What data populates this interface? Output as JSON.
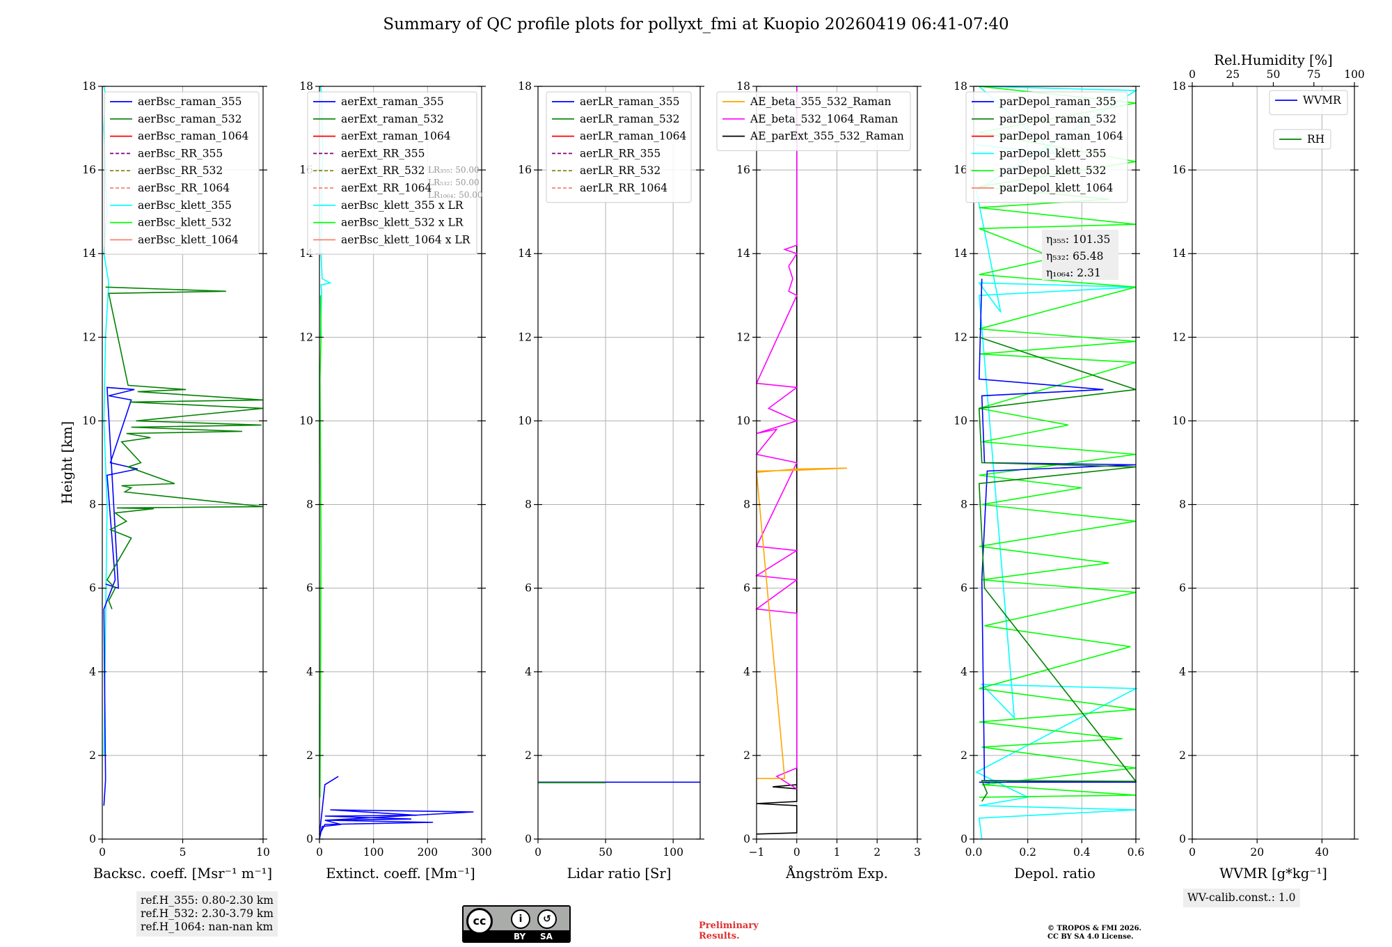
{
  "title": "Summary of QC profile plots for pollyxt_fmi at Kuopio 20260419 06:41-07:40",
  "colors": {
    "blue": "#0000ff",
    "green": "#008000",
    "red": "#ff0000",
    "purple": "#800080",
    "olive": "#808000",
    "salmon": "#fa8072",
    "cyan": "#00ffff",
    "lime": "#00ff00",
    "orange": "#ffa500",
    "magenta": "#ff00ff",
    "black": "#000000",
    "grid": "#b0b0b0"
  },
  "chart_data": [
    {
      "id": "backscatter",
      "type": "line",
      "ylabel": "Height [km]",
      "ylim": [
        0,
        18
      ],
      "yticks": [
        0,
        2,
        4,
        6,
        8,
        10,
        12,
        14,
        16,
        18
      ],
      "xlabel": "Backsc. coeff. [Msr⁻¹ m⁻¹]",
      "xlim": [
        0,
        10
      ],
      "xticks": [
        0,
        5,
        10
      ],
      "xticklabels": [
        "0",
        "5",
        "10"
      ],
      "legend": {
        "placement": "top-right",
        "entries": [
          {
            "label": "aerBsc_raman_355",
            "color": "blue",
            "style": "solid"
          },
          {
            "label": "aerBsc_raman_532",
            "color": "green",
            "style": "solid"
          },
          {
            "label": "aerBsc_raman_1064",
            "color": "red",
            "style": "solid"
          },
          {
            "label": "aerBsc_RR_355",
            "color": "purple",
            "style": "dashed"
          },
          {
            "label": "aerBsc_RR_532",
            "color": "olive",
            "style": "dashed"
          },
          {
            "label": "aerBsc_RR_1064",
            "color": "salmon",
            "style": "dashed"
          },
          {
            "label": "aerBsc_klett_355",
            "color": "cyan",
            "style": "solid"
          },
          {
            "label": "aerBsc_klett_532",
            "color": "lime",
            "style": "solid"
          },
          {
            "label": "aerBsc_klett_1064",
            "color": "salmon",
            "style": "solid"
          }
        ]
      },
      "series": [
        {
          "name": "aerBsc_klett_355",
          "color": "cyan",
          "x": [
            0.1,
            0.2,
            0.3,
            0.1,
            0.2,
            0.4,
            0.1,
            0.3,
            0.2,
            0.1,
            0.2,
            0.1
          ],
          "y": [
            2,
            5,
            8,
            10,
            12,
            13.3,
            14,
            15,
            16,
            17,
            17.8,
            18
          ]
        },
        {
          "name": "aerBsc_raman_355",
          "color": "blue",
          "x": [
            0.1,
            0.2,
            0.2,
            0.1,
            0.8,
            0.3,
            2.2,
            0.5,
            1.8,
            0.4,
            2.0,
            0.3,
            1.0,
            0.2
          ],
          "y": [
            0.8,
            1.4,
            1.5,
            5.5,
            6.2,
            8.7,
            8.85,
            9.0,
            10.5,
            10.6,
            10.75,
            10.8,
            6.0,
            6.1
          ]
        },
        {
          "name": "aerBsc_raman_532",
          "color": "green",
          "x": [
            0.6,
            0.4,
            0.8,
            0.3,
            1.8,
            0.5,
            1.5,
            0.8,
            3.2,
            0.9,
            10,
            1.4,
            1.8,
            1.2,
            4.5,
            1.6,
            2.4,
            1.2,
            3.0,
            1.5,
            8.7,
            1.8,
            9.9,
            2.1,
            10,
            1.7,
            10,
            2.2,
            5.2,
            1.6,
            0.4,
            7.7,
            0.2
          ],
          "y": [
            5.5,
            5.7,
            6.0,
            6.2,
            7.2,
            7.4,
            7.6,
            7.8,
            7.9,
            7.92,
            7.95,
            8.3,
            8.4,
            8.45,
            8.5,
            8.9,
            9.0,
            9.5,
            9.6,
            9.7,
            9.75,
            9.85,
            9.9,
            10.0,
            10.3,
            10.45,
            10.5,
            10.7,
            10.75,
            10.85,
            13.05,
            13.1,
            13.2
          ]
        }
      ],
      "refbox": [
        "ref.H_355: 0.80-2.30 km",
        "ref.H_532: 2.30-3.79 km",
        "ref.H_1064: nan-nan km"
      ]
    },
    {
      "id": "extinction",
      "type": "line",
      "ylim": [
        0,
        18
      ],
      "yticks": [
        0,
        2,
        4,
        6,
        8,
        10,
        12,
        14,
        16,
        18
      ],
      "xlabel": "Extinct. coeff. [Mm⁻¹]",
      "xlim": [
        0,
        300
      ],
      "xticks": [
        0,
        100,
        200,
        300
      ],
      "xticklabels": [
        "0",
        "100",
        "200",
        "300"
      ],
      "legend": {
        "placement": "top-right",
        "entries": [
          {
            "label": "aerExt_raman_355",
            "color": "blue",
            "style": "solid"
          },
          {
            "label": "aerExt_raman_532",
            "color": "green",
            "style": "solid"
          },
          {
            "label": "aerExt_raman_1064",
            "color": "red",
            "style": "solid"
          },
          {
            "label": "aerExt_RR_355",
            "color": "purple",
            "style": "dashed"
          },
          {
            "label": "aerExt_RR_532",
            "color": "olive",
            "style": "dashed"
          },
          {
            "label": "aerExt_RR_1064",
            "color": "salmon",
            "style": "dashed"
          },
          {
            "label": "aerBsc_klett_355 x LR",
            "color": "cyan",
            "style": "solid"
          },
          {
            "label": "aerBsc_klett_532 x LR",
            "color": "lime",
            "style": "solid"
          },
          {
            "label": "aerBsc_klett_1064 x LR",
            "color": "salmon",
            "style": "solid"
          }
        ]
      },
      "lr_notes": [
        "LR₃₅₅: 50.00",
        "LR₅₃₂: 50.00",
        "LR₁₀₆₄: 50.00"
      ],
      "series": [
        {
          "name": "aerBsc_klett_355 x LR",
          "color": "cyan",
          "x": [
            2,
            4,
            3,
            20,
            5,
            3,
            6,
            4,
            2
          ],
          "y": [
            12,
            13.1,
            13.25,
            13.3,
            13.4,
            14,
            16.5,
            17.8,
            18
          ]
        },
        {
          "name": "aerBsc_klett_532 x LR",
          "color": "lime",
          "x": [
            1,
            2,
            3,
            2,
            1,
            3,
            2
          ],
          "y": [
            1,
            4,
            7,
            9,
            11,
            12,
            13
          ]
        },
        {
          "name": "aerExt_raman_355",
          "color": "blue",
          "x": [
            0,
            5,
            40,
            10,
            285,
            20,
            180,
            10,
            170,
            15,
            210,
            10,
            0,
            10,
            35
          ],
          "y": [
            0,
            0.3,
            0.35,
            0.45,
            0.65,
            0.7,
            0.57,
            0.55,
            0.48,
            0.45,
            0.4,
            0.35,
            0.1,
            1.3,
            1.5
          ]
        }
      ]
    },
    {
      "id": "lidar_ratio",
      "type": "line",
      "ylim": [
        0,
        18
      ],
      "yticks": [
        0,
        2,
        4,
        6,
        8,
        10,
        12,
        14,
        16,
        18
      ],
      "xlabel": "Lidar ratio [Sr]",
      "xlim": [
        0,
        120
      ],
      "xticks": [
        0,
        50,
        100
      ],
      "xticklabels": [
        "0",
        "50",
        "100"
      ],
      "legend": {
        "placement": "top-right",
        "entries": [
          {
            "label": "aerLR_raman_355",
            "color": "blue",
            "style": "solid"
          },
          {
            "label": "aerLR_raman_532",
            "color": "green",
            "style": "solid"
          },
          {
            "label": "aerLR_raman_1064",
            "color": "red",
            "style": "solid"
          },
          {
            "label": "aerLR_RR_355",
            "color": "purple",
            "style": "dashed"
          },
          {
            "label": "aerLR_RR_532",
            "color": "olive",
            "style": "dashed"
          },
          {
            "label": "aerLR_RR_1064",
            "color": "salmon",
            "style": "dashed"
          }
        ]
      },
      "series": [
        {
          "name": "aerLR_raman_355",
          "color": "blue",
          "x": [
            0,
            120
          ],
          "y": [
            1.36,
            1.36
          ]
        },
        {
          "name": "aerLR_raman_532",
          "color": "green",
          "x": [
            0,
            50
          ],
          "y": [
            1.35,
            1.35
          ]
        }
      ]
    },
    {
      "id": "angstrom",
      "type": "line",
      "ylim": [
        0,
        18
      ],
      "yticks": [
        0,
        2,
        4,
        6,
        8,
        10,
        12,
        14,
        16,
        18
      ],
      "xlabel": "Ångström Exp.",
      "xlim": [
        -1,
        3
      ],
      "xticks": [
        -1,
        0,
        1,
        2,
        3
      ],
      "xticklabels": [
        "−1",
        "0",
        "1",
        "2",
        "3"
      ],
      "legend": {
        "placement": "top-right",
        "entries": [
          {
            "label": "AE_beta_355_532_Raman",
            "color": "orange",
            "style": "solid"
          },
          {
            "label": "AE_beta_532_1064_Raman",
            "color": "magenta",
            "style": "solid"
          },
          {
            "label": "AE_parExt_355_532_Raman",
            "color": "black",
            "style": "solid"
          }
        ]
      },
      "series": [
        {
          "name": "AE_parExt_355_532_Raman",
          "color": "black",
          "x": [
            0,
            0,
            -0.6,
            0,
            0,
            -1.0,
            0,
            0,
            -1.0
          ],
          "y": [
            18,
            1.2,
            1.25,
            1.3,
            0.9,
            0.85,
            0.8,
            0.15,
            0.12
          ]
        },
        {
          "name": "AE_beta_532_1064_Raman",
          "color": "magenta",
          "x": [
            0,
            0,
            -0.3,
            0,
            -0.2,
            -0.1,
            -0.2,
            0,
            -1,
            0,
            -0.7,
            0,
            -1,
            -0.5,
            -1,
            0,
            -1,
            0,
            -1,
            0,
            -1,
            0,
            0,
            -0.5,
            0
          ],
          "y": [
            18,
            14.2,
            14.1,
            14.0,
            13.7,
            13.4,
            13.1,
            13.0,
            10.9,
            10.8,
            10.3,
            10.0,
            9.7,
            9.8,
            9.2,
            9.0,
            7.0,
            6.9,
            6.3,
            6.2,
            5.5,
            5.4,
            1.7,
            1.5,
            1.2
          ]
        },
        {
          "name": "AE_beta_355_532_Raman",
          "color": "orange",
          "x": [
            -1,
            0,
            1.25,
            0,
            -1,
            -0.3,
            -1
          ],
          "y": [
            8.8,
            8.82,
            8.87,
            8.85,
            8.77,
            1.45,
            1.45
          ]
        }
      ]
    },
    {
      "id": "depolarization",
      "type": "line",
      "ylim": [
        0,
        18
      ],
      "yticks": [
        0,
        2,
        4,
        6,
        8,
        10,
        12,
        14,
        16,
        18
      ],
      "xlabel": "Depol. ratio",
      "xlim": [
        0,
        0.6
      ],
      "xticks": [
        0,
        0.2,
        0.4,
        0.6
      ],
      "xticklabels": [
        "0.0",
        "0.2",
        "0.4",
        "0.6"
      ],
      "legend": {
        "placement": "top-left",
        "entries": [
          {
            "label": "parDepol_raman_355",
            "color": "blue",
            "style": "solid"
          },
          {
            "label": "parDepol_raman_532",
            "color": "green",
            "style": "solid"
          },
          {
            "label": "parDepol_raman_1064",
            "color": "red",
            "style": "solid"
          },
          {
            "label": "parDepol_klett_355",
            "color": "cyan",
            "style": "solid"
          },
          {
            "label": "parDepol_klett_532",
            "color": "lime",
            "style": "solid"
          },
          {
            "label": "parDepol_klett_1064",
            "color": "salmon",
            "style": "solid"
          }
        ]
      },
      "eta_labels": [
        "η₃₅₅: 101.35",
        "η₅₃₂: 65.48",
        "η₁₀₆₄: 2.31"
      ],
      "series": [
        {
          "name": "parDepol_klett_355",
          "color": "cyan",
          "x": [
            0.03,
            0.02,
            0.6,
            0.02,
            0.2,
            0.01,
            0.6,
            0.03,
            0.15,
            0.02,
            0.6,
            0.02,
            0.1,
            0.01,
            0.6,
            0.02,
            0.3,
            0.01
          ],
          "y": [
            0,
            0.5,
            0.7,
            0.8,
            1.0,
            1.6,
            3.6,
            3.7,
            2.9,
            13.0,
            13.2,
            13.3,
            12.6,
            15.5,
            17.9,
            18,
            16.4,
            16.6
          ]
        },
        {
          "name": "parDepol_klett_532",
          "color": "lime",
          "x": [
            0.02,
            0.6,
            0.03,
            0.6,
            0.03,
            0.55,
            0.02,
            0.6,
            0.02,
            0.58,
            0.04,
            0.6,
            0.03,
            0.5,
            0.02,
            0.6,
            0.03,
            0.4,
            0.02,
            0.6,
            0.03,
            0.35,
            0.02,
            0.6,
            0.02,
            0.6,
            0.02,
            0.6,
            0.02,
            0.3,
            0.02,
            0.6,
            0.02,
            0.5,
            0.02,
            0.6,
            0.02,
            0.6,
            0.02
          ],
          "y": [
            1,
            1.05,
            1.3,
            1.7,
            2.2,
            2.4,
            2.8,
            3.1,
            3.6,
            4.6,
            5.1,
            5.9,
            6.2,
            6.6,
            7.0,
            7.6,
            8.0,
            8.4,
            8.7,
            9.2,
            9.5,
            9.9,
            10.3,
            11.4,
            11.6,
            11.9,
            12.2,
            13.2,
            13.5,
            13.9,
            14.6,
            14.7,
            15.1,
            15.3,
            15.6,
            16.2,
            16.9,
            17.6,
            18
          ]
        },
        {
          "name": "parDepol_raman_355",
          "color": "blue",
          "x": [
            0.06,
            0.02,
            0.6,
            0.04,
            0.03,
            0.05,
            0.6,
            0.04,
            0.03,
            0.48,
            0.02,
            0.03
          ],
          "y": [
            1.35,
            1.36,
            1.36,
            1.4,
            6.2,
            8.8,
            8.95,
            9.0,
            10.6,
            10.75,
            11.0,
            13.4
          ]
        },
        {
          "name": "parDepol_raman_532",
          "color": "green",
          "x": [
            0.03,
            0.05,
            0.03,
            0.6,
            0.04,
            0.02,
            0.6,
            0.03,
            0.02,
            0.6,
            0.02
          ],
          "y": [
            0.9,
            1.1,
            1.4,
            1.38,
            6.0,
            8.5,
            8.9,
            9.0,
            10.3,
            10.75,
            12
          ]
        }
      ]
    },
    {
      "id": "water_vapor",
      "type": "line",
      "ylim": [
        0,
        18
      ],
      "yticks": [
        0,
        2,
        4,
        6,
        8,
        10,
        12,
        14,
        16,
        18
      ],
      "xlabel": "WVMR [g*kg⁻¹]",
      "xlim": [
        0,
        50
      ],
      "xticks": [
        0,
        20,
        40
      ],
      "xticklabels": [
        "0",
        "20",
        "40"
      ],
      "top_xlabel": "Rel.Humidity [%]",
      "top_xlim": [
        0,
        100
      ],
      "top_xticks": [
        0,
        25,
        50,
        75,
        100
      ],
      "top_xticklabels": [
        "0",
        "25",
        "50",
        "75",
        "100"
      ],
      "legend": {
        "placement": "top-right",
        "entries": [
          {
            "label": "WVMR",
            "color": "blue",
            "style": "solid"
          }
        ]
      },
      "legend2": {
        "placement": "top-right",
        "entries": [
          {
            "label": "RH",
            "color": "green",
            "style": "solid"
          }
        ]
      },
      "calib": "WV-calib.const.: 1.0",
      "series": []
    }
  ],
  "footer": {
    "cc_main": "cc",
    "cc_by": "BY",
    "cc_sa": "SA",
    "cc_icon_by": "i",
    "cc_icon_sa": "↺",
    "prelim_1": "Preliminary",
    "prelim_2": "Results.",
    "copy_1": "© TROPOS & FMI 2026.",
    "copy_2": "CC BY SA 4.0 License."
  }
}
